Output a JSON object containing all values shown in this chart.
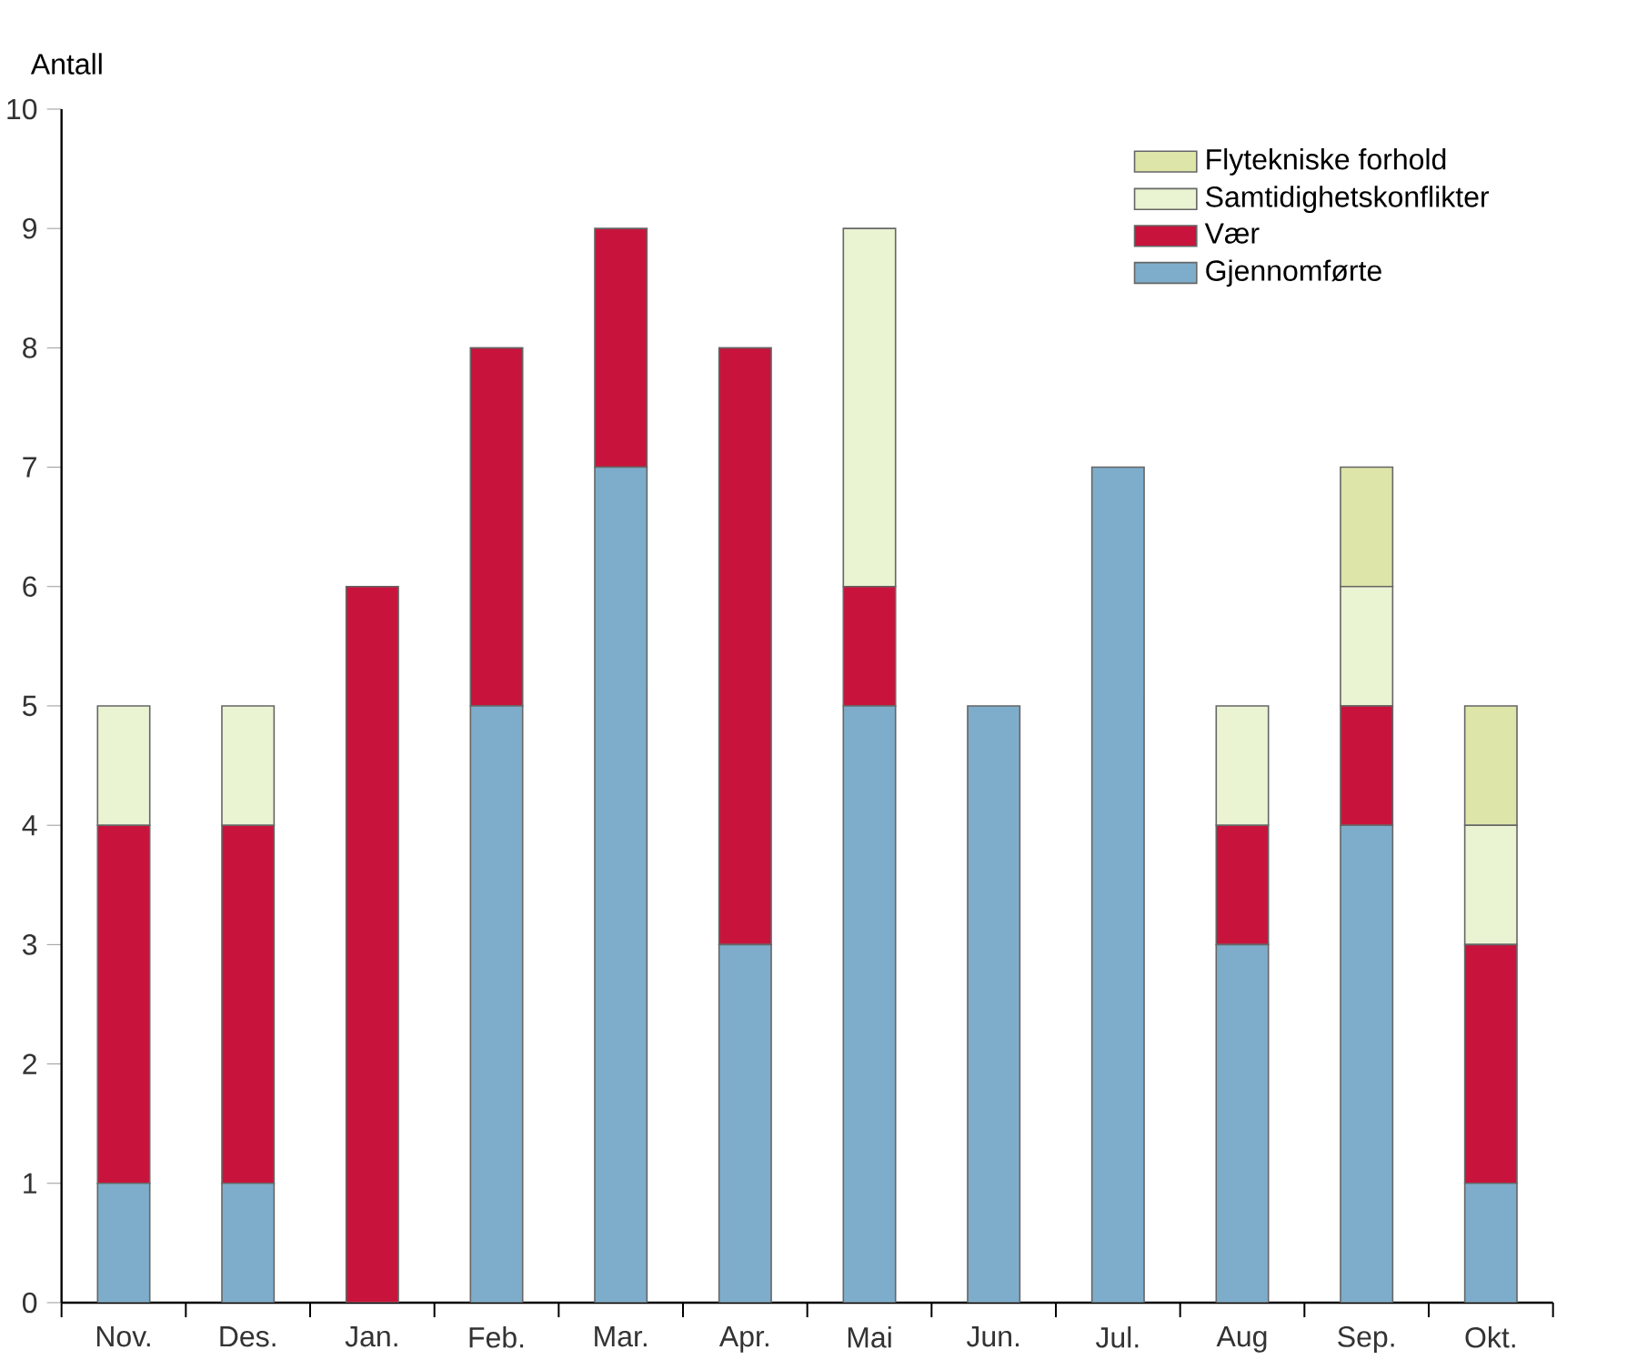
{
  "chart_data": {
    "type": "bar",
    "stacked": true,
    "ylabel": "Antall",
    "categories": [
      "Nov.",
      "Des.",
      "Jan.",
      "Feb.",
      "Mar.",
      "Apr.",
      "Mai",
      "Jun.",
      "Jul.",
      "Aug",
      "Sep.",
      "Okt."
    ],
    "series": [
      {
        "name": "Gjennomførte",
        "color": "#7eadcb",
        "values": [
          1,
          1,
          null,
          5,
          7,
          3,
          5,
          5,
          7,
          3,
          4,
          1
        ]
      },
      {
        "name": "Vær",
        "color": "#c8143c",
        "values": [
          3,
          3,
          6,
          3,
          2,
          5,
          1,
          null,
          null,
          1,
          1,
          2
        ]
      },
      {
        "name": "Samtidighetskonflikter",
        "color": "#eaf3d2",
        "values": [
          1,
          1,
          null,
          null,
          null,
          null,
          3,
          null,
          null,
          1,
          1,
          1
        ]
      },
      {
        "name": "Flytekniske forhold",
        "color": "#dde5a8",
        "values": [
          null,
          null,
          null,
          null,
          null,
          null,
          null,
          null,
          null,
          null,
          1,
          1
        ]
      }
    ],
    "ylim": [
      0,
      10
    ],
    "yticks": [
      0,
      1,
      2,
      3,
      4,
      5,
      6,
      7,
      8,
      9,
      10
    ],
    "grid": false,
    "legend": "top right"
  }
}
